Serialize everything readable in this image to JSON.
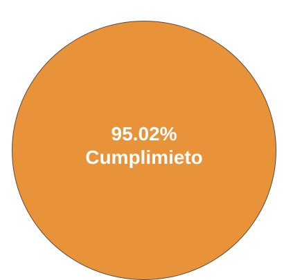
{
  "indicator": {
    "value": "95.02%",
    "label": "Cumplimieto"
  },
  "colors": {
    "fill": "#e8923a",
    "outline": "#5f4a3a",
    "text": "#ffffff"
  }
}
